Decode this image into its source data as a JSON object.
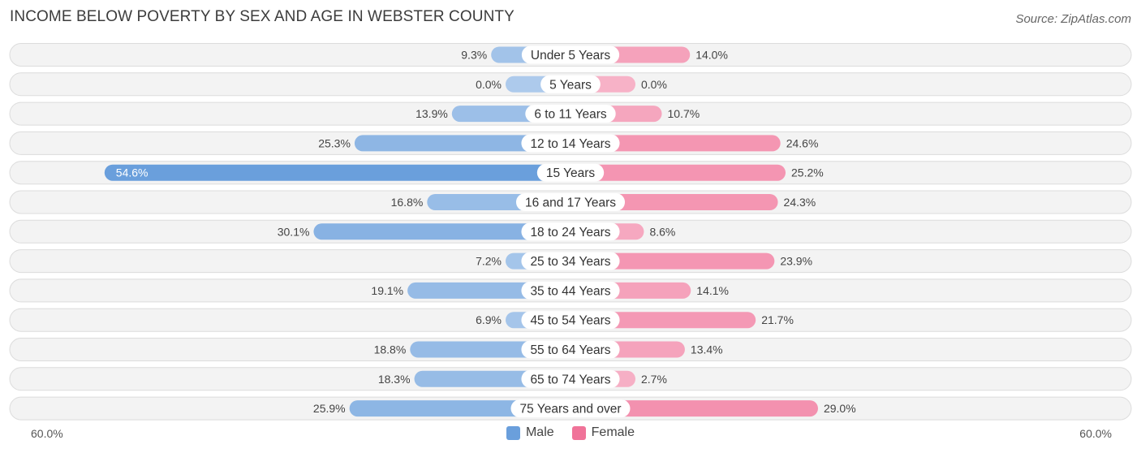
{
  "title": "INCOME BELOW POVERTY BY SEX AND AGE IN WEBSTER COUNTY",
  "source": "Source: ZipAtlas.com",
  "axis": {
    "left_label": "60.0%",
    "right_label": "60.0%"
  },
  "legend": {
    "male_label": "Male",
    "female_label": "Female",
    "male_color": "#6a9fdc",
    "female_color": "#f07399"
  },
  "chart_data": {
    "type": "bar",
    "orientation": "horizontal-diverging",
    "title": "INCOME BELOW POVERTY BY SEX AND AGE IN WEBSTER COUNTY",
    "xlim": [
      -60,
      60
    ],
    "unit": "%",
    "categories": [
      "Under 5 Years",
      "5 Years",
      "6 to 11 Years",
      "12 to 14 Years",
      "15 Years",
      "16 and 17 Years",
      "18 to 24 Years",
      "25 to 34 Years",
      "35 to 44 Years",
      "45 to 54 Years",
      "55 to 64 Years",
      "65 to 74 Years",
      "75 Years and over"
    ],
    "series": [
      {
        "name": "Male",
        "values": [
          9.3,
          0.0,
          13.9,
          25.3,
          54.6,
          16.8,
          30.1,
          7.2,
          19.1,
          6.9,
          18.8,
          18.3,
          25.9
        ]
      },
      {
        "name": "Female",
        "values": [
          14.0,
          0.0,
          10.7,
          24.6,
          25.2,
          24.3,
          8.6,
          23.9,
          14.1,
          21.7,
          13.4,
          2.7,
          29.0
        ]
      }
    ],
    "value_labels": {
      "male": [
        "9.3%",
        "0.0%",
        "13.9%",
        "25.3%",
        "54.6%",
        "16.8%",
        "30.1%",
        "7.2%",
        "19.1%",
        "6.9%",
        "18.8%",
        "18.3%",
        "25.9%"
      ],
      "female": [
        "14.0%",
        "0.0%",
        "10.7%",
        "24.6%",
        "25.2%",
        "24.3%",
        "8.6%",
        "23.9%",
        "14.1%",
        "21.7%",
        "13.4%",
        "2.7%",
        "29.0%"
      ]
    },
    "legend_position": "bottom-center",
    "grid": false
  }
}
